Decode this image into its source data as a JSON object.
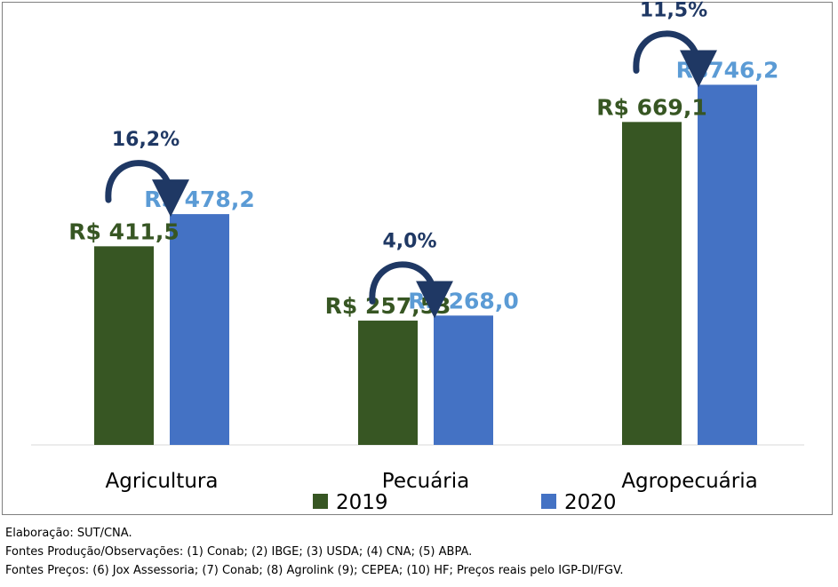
{
  "chart_data": {
    "type": "bar",
    "categories": [
      "Agricultura",
      "Pecuária",
      "Agropecuária"
    ],
    "series": [
      {
        "name": "2019",
        "values": [
          411.5,
          257.53,
          669.1
        ],
        "labels": [
          "R$ 411,5",
          "R$ 257,53",
          "R$ 669,1"
        ],
        "color": "#375623"
      },
      {
        "name": "2020",
        "values": [
          478.2,
          268.0,
          746.2
        ],
        "labels": [
          "R$ 478,2",
          "R$ 268,0",
          "R$746,2"
        ],
        "color": "#4472C4"
      }
    ],
    "growth": [
      "16,2%",
      "4,0%",
      "11,5%"
    ],
    "ylim": [
      0,
      800
    ],
    "grid": false,
    "legend": "bottom",
    "label_color_2020": "#5B9BD5",
    "arrow_color": "#1F3864"
  },
  "footnotes": {
    "elaboracao": "Elaboração: SUT/CNA.",
    "fontes_producao": "Fontes Produção/Observações: (1) Conab; (2) IBGE; (3) USDA; (4) CNA; (5) ABPA.",
    "fontes_precos": "Fontes Preços: (6) Jox Assessoria; (7) Conab; (8) Agrolink (9); CEPEA; (10) HF; Preços reais pelo IGP-DI/FGV."
  }
}
